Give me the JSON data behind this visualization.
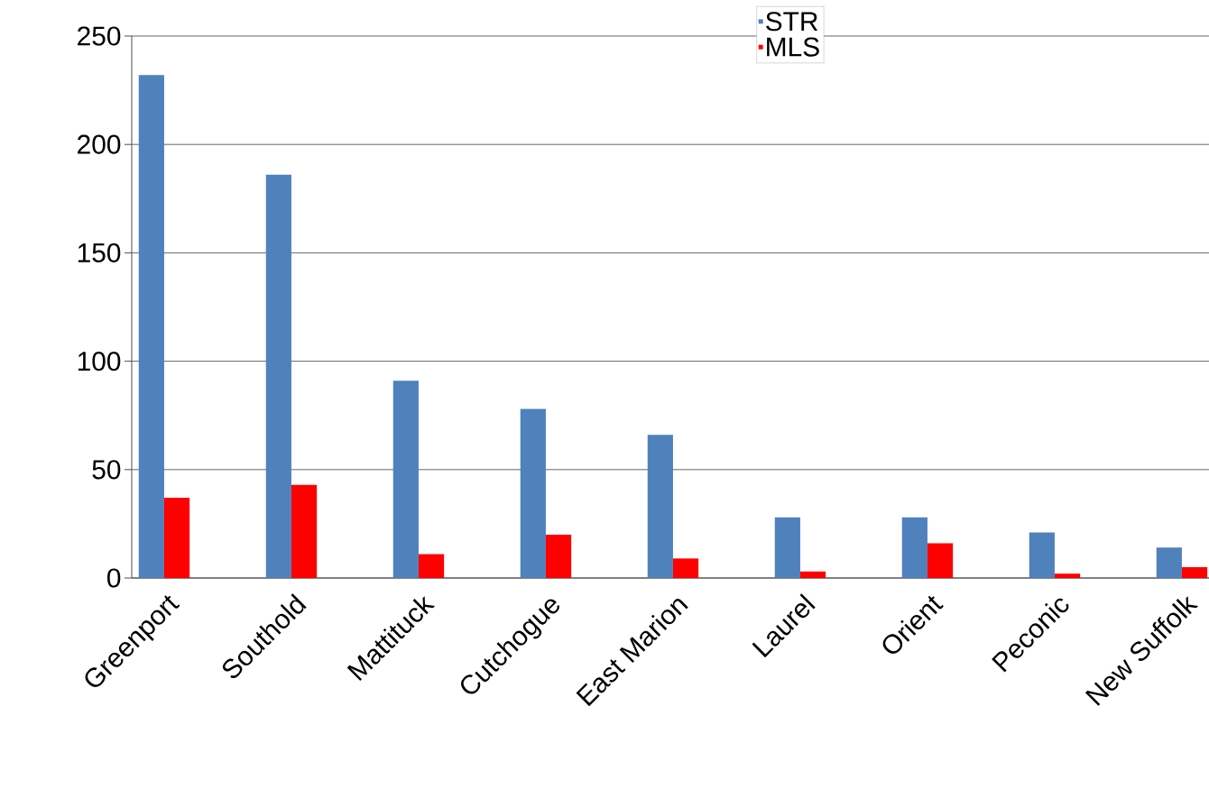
{
  "chart_data": {
    "type": "bar",
    "categories": [
      "Greenport",
      "Southold",
      "Mattituck",
      "Cutchogue",
      "East Marion",
      "Laurel",
      "Orient",
      "Peconic",
      "New Suffolk"
    ],
    "series": [
      {
        "name": "STR",
        "color": "#4f81bd",
        "values": [
          232,
          186,
          91,
          78,
          66,
          28,
          28,
          21,
          14
        ]
      },
      {
        "name": "MLS",
        "color": "#ff0000",
        "values": [
          37,
          43,
          11,
          20,
          9,
          3,
          16,
          2,
          5
        ]
      }
    ],
    "ylim": [
      0,
      250
    ],
    "yticks": [
      0,
      50,
      100,
      150,
      200,
      250
    ],
    "grid": "y",
    "legend": "top"
  }
}
